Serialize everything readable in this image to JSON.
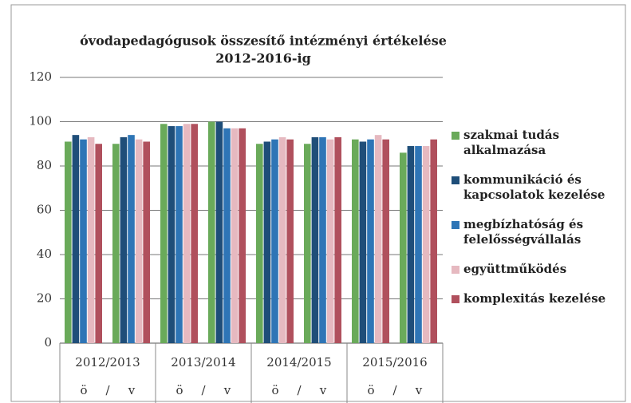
{
  "chart_data": {
    "type": "bar",
    "title": [
      "óvodapedagógusok összesítő intézményi értékelése",
      "2012-2016-ig"
    ],
    "group_labels": [
      "2012/2013",
      "2013/2014",
      "2014/2015",
      "2015/2016"
    ],
    "categories": [
      "ö",
      "v",
      "ö",
      "v",
      "ö",
      "v",
      "ö",
      "v"
    ],
    "category_separator": "/",
    "series": [
      {
        "name": "szakmai tudás alkalmazása",
        "color": "#6aaa5a",
        "values": [
          91,
          90,
          99,
          100,
          90,
          90,
          92,
          86
        ]
      },
      {
        "name": "kommunikáció és kapcsolatok kezelése",
        "color": "#1f4e79",
        "values": [
          94,
          93,
          98,
          100,
          91,
          93,
          91,
          89
        ]
      },
      {
        "name": "megbízhatóság és felelősségvállalás",
        "color": "#2e75b6",
        "values": [
          92,
          94,
          98,
          97,
          92,
          93,
          92,
          89
        ]
      },
      {
        "name": "együttműködés",
        "color": "#e6b9c0",
        "values": [
          93,
          92,
          99,
          97,
          93,
          92,
          94,
          89
        ]
      },
      {
        "name": "komplexitás kezelése",
        "color": "#b0505d",
        "values": [
          90,
          91,
          99,
          97,
          92,
          93,
          92,
          92
        ]
      }
    ],
    "ylim": [
      0,
      120
    ],
    "yticks": [
      0,
      20,
      40,
      60,
      80,
      100,
      120
    ],
    "grid": true
  }
}
